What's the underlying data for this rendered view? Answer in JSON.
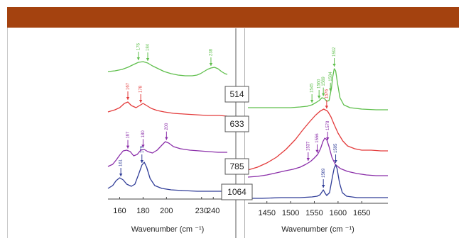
{
  "chart_data": [
    {
      "type": "line",
      "panel": "low-wavenumber",
      "xlabel": "Wavenumber (cm ⁻¹)",
      "ylabel": "",
      "xlim": [
        150,
        252
      ],
      "x_ticks": [
        160,
        180,
        200,
        230,
        240
      ],
      "series": [
        {
          "laser": "514",
          "color": "#5fbf4c",
          "points": [
            [
              150,
              101
            ],
            [
              156,
              100
            ],
            [
              162,
              98
            ],
            [
              167,
              95
            ],
            [
              172,
              91
            ],
            [
              176,
              88
            ],
            [
              180,
              87
            ],
            [
              184,
              89
            ],
            [
              188,
              93
            ],
            [
              193,
              97
            ],
            [
              198,
              101
            ],
            [
              204,
              104
            ],
            [
              210,
              106
            ],
            [
              216,
              107
            ],
            [
              222,
              107
            ],
            [
              226,
              106
            ],
            [
              229,
              104
            ],
            [
              232,
              101
            ],
            [
              235,
              98
            ],
            [
              238,
              96
            ],
            [
              241,
              95
            ],
            [
              244,
              97
            ],
            [
              247,
              101
            ],
            [
              250,
              104
            ],
            [
              252,
              105
            ]
          ],
          "peak_labels": [
            {
              "text": "176",
              "x": 176
            },
            {
              "text": "184",
              "x": 184
            },
            {
              "text": "238",
              "x": 238
            }
          ]
        },
        {
          "laser": "633",
          "color": "#e33b3b",
          "points": [
            [
              150,
              158
            ],
            [
              156,
              155
            ],
            [
              160,
              152
            ],
            [
              164,
              146
            ],
            [
              167,
              144
            ],
            [
              170,
              149
            ],
            [
              174,
              152
            ],
            [
              177,
              149
            ],
            [
              180,
              146
            ],
            [
              183,
              149
            ],
            [
              187,
              153
            ],
            [
              192,
              156
            ],
            [
              198,
              158
            ],
            [
              206,
              160
            ],
            [
              215,
              161
            ],
            [
              225,
              162
            ],
            [
              235,
              163
            ],
            [
              245,
              163
            ],
            [
              252,
              164
            ]
          ],
          "peak_labels": [
            {
              "text": "167",
              "x": 167
            },
            {
              "text": "178",
              "x": 178
            }
          ]
        },
        {
          "laser": "785",
          "color": "#8b2fa9",
          "points": [
            [
              150,
              235
            ],
            [
              154,
              232
            ],
            [
              157,
              226
            ],
            [
              160,
              219
            ],
            [
              163,
              213
            ],
            [
              166,
              212
            ],
            [
              169,
              214
            ],
            [
              172,
              220
            ],
            [
              175,
              218
            ],
            [
              178,
              212
            ],
            [
              181,
              211
            ],
            [
              184,
              214
            ],
            [
              188,
              216
            ],
            [
              192,
              212
            ],
            [
              196,
              205
            ],
            [
              199,
              200
            ],
            [
              202,
              202
            ],
            [
              206,
              207
            ],
            [
              212,
              210
            ],
            [
              220,
              212
            ],
            [
              228,
              213
            ],
            [
              236,
              214
            ],
            [
              244,
              215
            ],
            [
              252,
              215
            ]
          ],
          "peak_labels": [
            {
              "text": "167",
              "x": 167
            },
            {
              "text": "180",
              "x": 180
            },
            {
              "text": "200",
              "x": 200
            }
          ]
        },
        {
          "laser": "1064",
          "color": "#303d98",
          "points": [
            [
              150,
              266
            ],
            [
              154,
              262
            ],
            [
              157,
              255
            ],
            [
              160,
              251
            ],
            [
              163,
              254
            ],
            [
              166,
              260
            ],
            [
              170,
              263
            ],
            [
              173,
              260
            ],
            [
              176,
              247
            ],
            [
              179,
              233
            ],
            [
              181,
              229
            ],
            [
              183,
              236
            ],
            [
              186,
              252
            ],
            [
              190,
              262
            ],
            [
              196,
              266
            ],
            [
              204,
              268
            ],
            [
              214,
              269
            ],
            [
              226,
              270
            ],
            [
              240,
              270
            ],
            [
              252,
              270
            ]
          ],
          "peak_labels": [
            {
              "text": "161",
              "x": 161
            },
            {
              "text": "179",
              "x": 179
            }
          ]
        }
      ]
    },
    {
      "type": "line",
      "panel": "high-wavenumber",
      "xlabel": "Wavenumber (cm ⁻¹)",
      "ylabel": "",
      "xlim": [
        1410,
        1705
      ],
      "x_ticks": [
        1450,
        1500,
        1550,
        1600,
        1650
      ],
      "series": [
        {
          "laser": "514",
          "color": "#5fbf4c",
          "points": [
            [
              1410,
              152
            ],
            [
              1460,
              152
            ],
            [
              1500,
              152
            ],
            [
              1520,
              151
            ],
            [
              1535,
              150
            ],
            [
              1545,
              148
            ],
            [
              1553,
              145
            ],
            [
              1560,
              142
            ],
            [
              1566,
              138
            ],
            [
              1571,
              139
            ],
            [
              1576,
              143
            ],
            [
              1581,
              142
            ],
            [
              1586,
              125
            ],
            [
              1589,
              108
            ],
            [
              1592,
              97
            ],
            [
              1595,
              100
            ],
            [
              1599,
              118
            ],
            [
              1604,
              138
            ],
            [
              1612,
              148
            ],
            [
              1625,
              152
            ],
            [
              1650,
              154
            ],
            [
              1680,
              155
            ],
            [
              1705,
              155
            ]
          ],
          "peak_labels": [
            {
              "text": "1545",
              "x": 1545
            },
            {
              "text": "1560",
              "x": 1560
            },
            {
              "text": "1569",
              "x": 1569
            },
            {
              "text": "1584",
              "x": 1584
            },
            {
              "text": "1592",
              "x": 1592
            }
          ]
        },
        {
          "laser": "633",
          "color": "#e33b3b",
          "points": [
            [
              1410,
              240
            ],
            [
              1430,
              236
            ],
            [
              1450,
              230
            ],
            [
              1470,
              222
            ],
            [
              1490,
              211
            ],
            [
              1510,
              197
            ],
            [
              1525,
              184
            ],
            [
              1540,
              172
            ],
            [
              1552,
              163
            ],
            [
              1562,
              157
            ],
            [
              1570,
              154
            ],
            [
              1578,
              157
            ],
            [
              1585,
              165
            ],
            [
              1592,
              176
            ],
            [
              1600,
              188
            ],
            [
              1610,
              199
            ],
            [
              1620,
              206
            ],
            [
              1635,
              210
            ],
            [
              1650,
              212
            ],
            [
              1670,
              212
            ],
            [
              1690,
              213
            ],
            [
              1705,
              213
            ]
          ],
          "peak_labels": [
            {
              "text": "1576",
              "x": 1576
            }
          ]
        },
        {
          "laser": "785",
          "color": "#8b2fa9",
          "points": [
            [
              1410,
              250
            ],
            [
              1430,
              249
            ],
            [
              1450,
              247
            ],
            [
              1470,
              244
            ],
            [
              1490,
              241
            ],
            [
              1505,
              239
            ],
            [
              1520,
              236
            ],
            [
              1532,
              232
            ],
            [
              1542,
              228
            ],
            [
              1550,
              223
            ],
            [
              1557,
              218
            ],
            [
              1563,
              210
            ],
            [
              1568,
              200
            ],
            [
              1572,
              195
            ],
            [
              1576,
              197
            ],
            [
              1581,
              207
            ],
            [
              1587,
              222
            ],
            [
              1594,
              232
            ],
            [
              1605,
              238
            ],
            [
              1620,
              242
            ],
            [
              1640,
              245
            ],
            [
              1660,
              247
            ],
            [
              1680,
              248
            ],
            [
              1705,
              248
            ]
          ],
          "peak_labels": [
            {
              "text": "1537",
              "x": 1537
            },
            {
              "text": "1556",
              "x": 1556
            },
            {
              "text": "1578",
              "x": 1578
            }
          ]
        },
        {
          "laser": "1064",
          "color": "#303d98",
          "points": [
            [
              1410,
              280
            ],
            [
              1440,
              280
            ],
            [
              1480,
              279
            ],
            [
              1520,
              279
            ],
            [
              1545,
              278
            ],
            [
              1556,
              277
            ],
            [
              1562,
              275
            ],
            [
              1566,
              271
            ],
            [
              1569,
              268
            ],
            [
              1572,
              272
            ],
            [
              1576,
              276
            ],
            [
              1582,
              272
            ],
            [
              1588,
              250
            ],
            [
              1592,
              237
            ],
            [
              1595,
              233
            ],
            [
              1598,
              238
            ],
            [
              1603,
              258
            ],
            [
              1609,
              272
            ],
            [
              1618,
              277
            ],
            [
              1640,
              279
            ],
            [
              1670,
              279
            ],
            [
              1705,
              279
            ]
          ],
          "peak_labels": [
            {
              "text": "1569",
              "x": 1569
            },
            {
              "text": "1595",
              "x": 1595
            }
          ]
        }
      ]
    }
  ],
  "laser_labels": [
    "514",
    "633",
    "785",
    "1064"
  ]
}
